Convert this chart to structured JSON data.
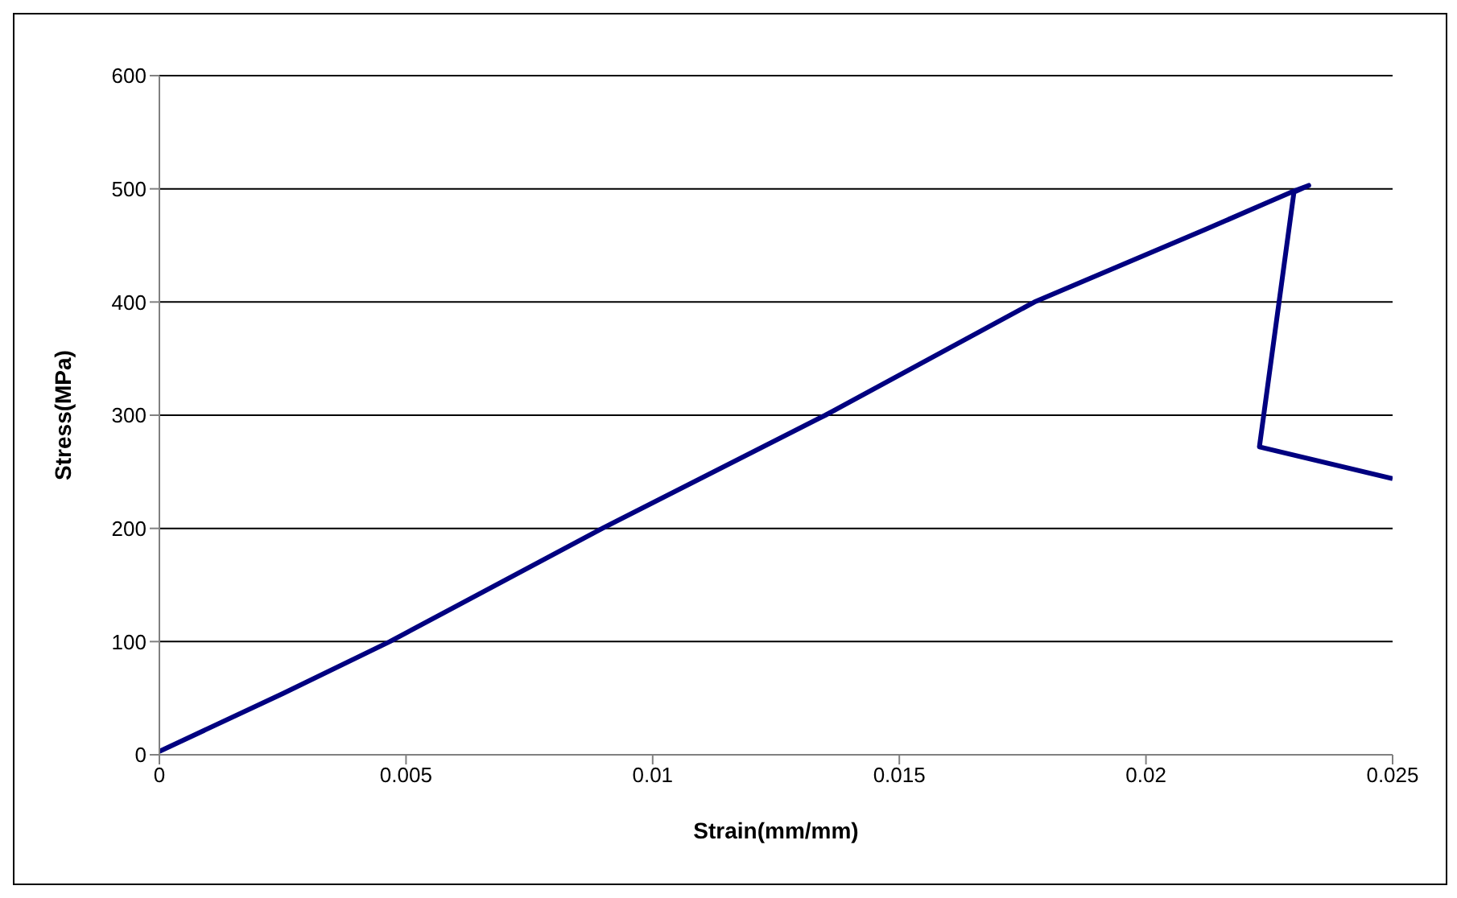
{
  "chart_data": {
    "type": "line",
    "xlabel": "Strain(mm/mm)",
    "ylabel": "Stress(MPa)",
    "series": [
      {
        "color": "#000080",
        "x": [
          0,
          0.0025,
          0.00467,
          0.00898,
          0.0135,
          0.01774,
          0.0212,
          0.02294,
          0.0233,
          0.023,
          0.0223,
          0.025
        ],
        "values": [
          3,
          54,
          100,
          200,
          300,
          400,
          464,
          497,
          503,
          497,
          272,
          244
        ]
      }
    ],
    "xlim": [
      0,
      0.025
    ],
    "xticks": [
      0,
      0.005,
      0.01,
      0.015,
      0.02,
      0.025
    ],
    "ylim": [
      0,
      600
    ],
    "yticks": [
      0,
      100,
      200,
      300,
      400,
      500,
      600
    ],
    "grid": "y",
    "marker": "none",
    "line_style": "solid"
  }
}
